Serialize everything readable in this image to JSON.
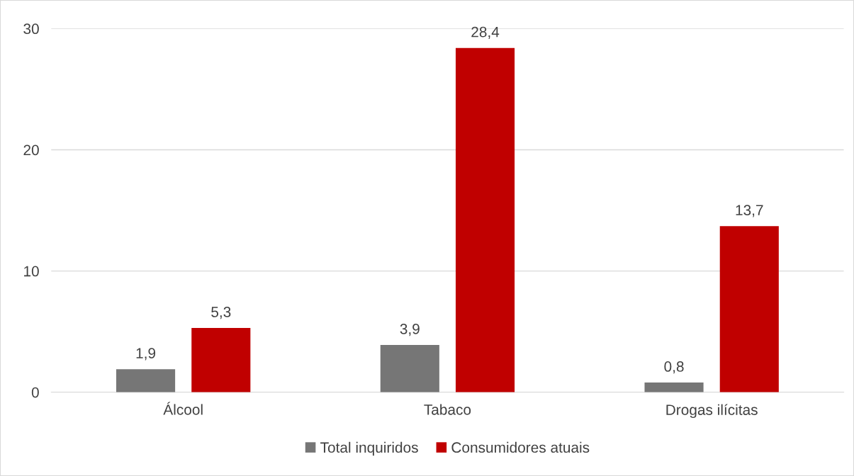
{
  "chart_data": {
    "type": "bar",
    "categories": [
      "Álcool",
      "Tabaco",
      "Drogas ilícitas"
    ],
    "series": [
      {
        "name": "Total inquiridos",
        "color": "#767676",
        "values": [
          1.9,
          3.9,
          0.8
        ],
        "value_labels": [
          "1,9",
          "3,9",
          "0,8"
        ]
      },
      {
        "name": "Consumidores atuais",
        "color": "#c00000",
        "values": [
          5.3,
          28.4,
          13.7
        ],
        "value_labels": [
          "5,3",
          "28,4",
          "13,7"
        ]
      }
    ],
    "ylim": [
      0,
      30
    ],
    "yticks": [
      0,
      10,
      20,
      30
    ],
    "grid": "y",
    "legend": "bottom"
  }
}
